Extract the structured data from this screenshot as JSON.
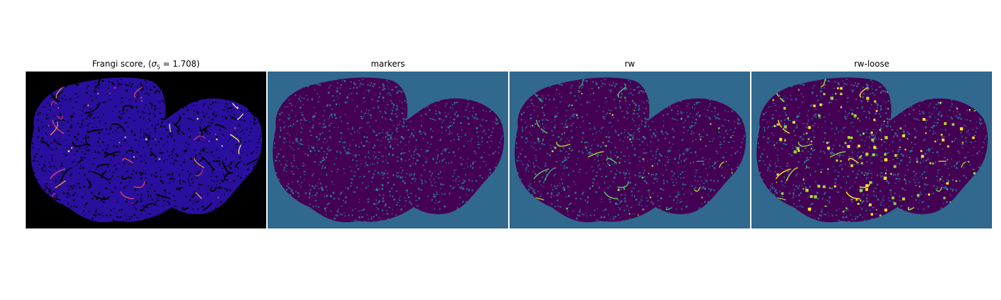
{
  "figure": {
    "panels": [
      {
        "id": "frangi",
        "title_prefix": "Frangi score, (",
        "title_sigma": "σ",
        "title_sub": "5",
        "title_suffix": " = 1.708)",
        "background_color": "#000000",
        "mesh_color": "#2a0f9e",
        "highlight_colors": [
          "#d9467a",
          "#f58b4a",
          "#f9e47a",
          "#b5367f"
        ]
      },
      {
        "id": "markers",
        "title": "markers",
        "background_color": "#31688e",
        "mesh_color": "#440154",
        "highlight_colors": [
          "#21918c",
          "#2a8c8a"
        ]
      },
      {
        "id": "rw",
        "title": "rw",
        "background_color": "#31688e",
        "mesh_color": "#440154",
        "highlight_colors": [
          "#5ec962",
          "#3b9c7a",
          "#b5de2b"
        ]
      },
      {
        "id": "rw-loose",
        "title": "rw-loose",
        "background_color": "#31688e",
        "mesh_color": "#440154",
        "highlight_colors": [
          "#fde725",
          "#b5de2b",
          "#90d743"
        ]
      }
    ]
  }
}
